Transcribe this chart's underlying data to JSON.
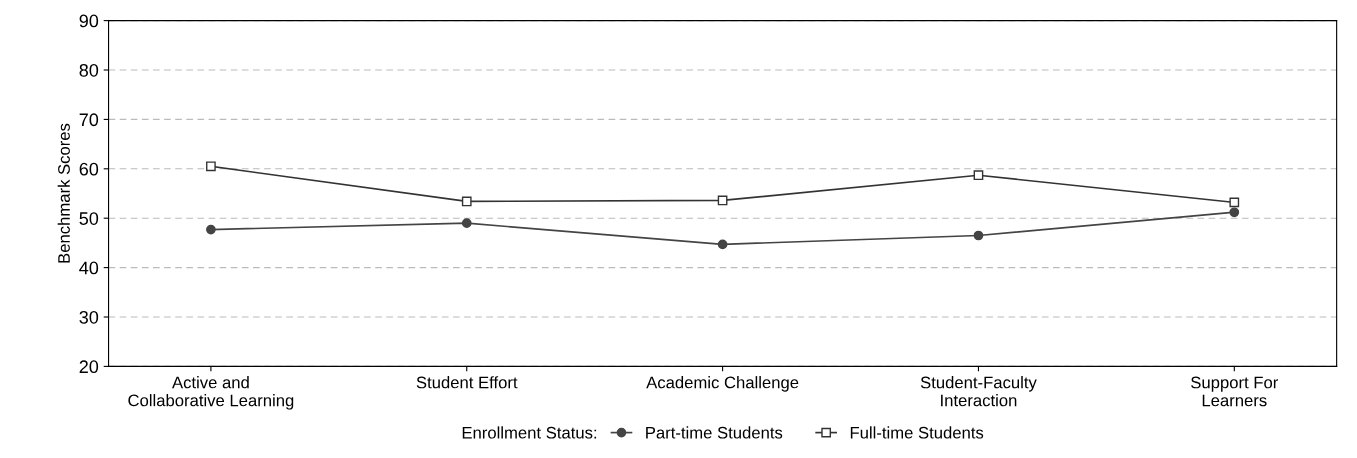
{
  "chart_data": {
    "type": "line",
    "ylabel": "Benchmark Scores",
    "legend_title": "Enrollment Status:",
    "categories": [
      "Active and\nCollaborative Learning",
      "Student Effort",
      "Academic Challenge",
      "Student-Faculty\nInteraction",
      "Support For\nLearners"
    ],
    "series": [
      {
        "name": "Part-time Students",
        "color": "#444444",
        "marker": "circle",
        "values": [
          47.7,
          49.0,
          44.7,
          46.5,
          51.2
        ]
      },
      {
        "name": "Full-time Students",
        "color": "#333333",
        "marker": "square",
        "values": [
          60.5,
          53.4,
          53.6,
          58.7,
          53.2
        ]
      }
    ],
    "ylim": [
      20,
      90
    ],
    "yticks": [
      20,
      30,
      40,
      50,
      60,
      70,
      80,
      90
    ],
    "grid": "y",
    "legend": "bottom",
    "line_style": "solid"
  }
}
